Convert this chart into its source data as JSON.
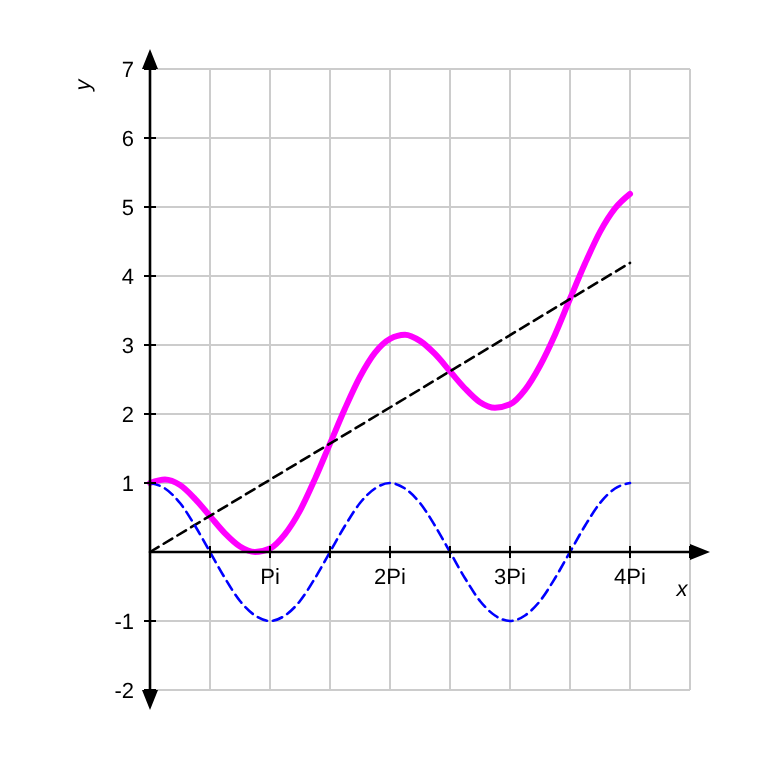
{
  "chart_data": {
    "type": "line",
    "xlabel": "x",
    "ylabel": "y",
    "xlim": [
      0,
      4.5
    ],
    "ylim": [
      -2,
      7
    ],
    "xticks": [
      {
        "value": 0.5,
        "label": null
      },
      {
        "value": 1,
        "label": "Pi"
      },
      {
        "value": 1.5,
        "label": null
      },
      {
        "value": 2,
        "label": "2Pi"
      },
      {
        "value": 2.5,
        "label": null
      },
      {
        "value": 3,
        "label": "3Pi"
      },
      {
        "value": 3.5,
        "label": null
      },
      {
        "value": 4,
        "label": "4Pi"
      },
      {
        "value": 4.5,
        "label": null
      }
    ],
    "yticks": [
      -2,
      -1,
      1,
      2,
      3,
      4,
      5,
      6,
      7
    ],
    "grid": true,
    "marker": "none",
    "series": [
      {
        "color": "#ff00ff",
        "line_style": "solid",
        "x": [
          0,
          0.125,
          0.25,
          0.375,
          0.5,
          0.625,
          0.75,
          0.875,
          1,
          1.125,
          1.25,
          1.375,
          1.5,
          1.625,
          1.75,
          1.875,
          2,
          2.125,
          2.25,
          2.375,
          2.5,
          2.625,
          2.75,
          2.875,
          3,
          3.125,
          3.25,
          3.375,
          3.5,
          3.625,
          3.75,
          3.875,
          4
        ],
        "values": [
          1,
          1.05,
          0.97,
          0.77,
          0.52,
          0.27,
          0.08,
          0,
          0.05,
          0.26,
          0.6,
          1.06,
          1.57,
          2.08,
          2.54,
          2.89,
          3.09,
          3.15,
          3.06,
          2.87,
          2.62,
          2.37,
          2.17,
          2.09,
          2.14,
          2.35,
          2.7,
          3.15,
          3.67,
          4.18,
          4.64,
          4.98,
          5.19
        ]
      },
      {
        "color": "#000000",
        "line_style": "dashed",
        "x": [
          0,
          4
        ],
        "values": [
          0,
          4.19
        ]
      },
      {
        "color": "#0000ff",
        "line_style": "dashed",
        "x": [
          0,
          0.125,
          0.25,
          0.375,
          0.5,
          0.625,
          0.75,
          0.875,
          1,
          1.125,
          1.25,
          1.375,
          1.5,
          1.625,
          1.75,
          1.875,
          2,
          2.125,
          2.25,
          2.375,
          2.5,
          2.625,
          2.75,
          2.875,
          3,
          3.125,
          3.25,
          3.375,
          3.5,
          3.625,
          3.75,
          3.875,
          4
        ],
        "values": [
          1,
          0.92,
          0.71,
          0.38,
          0,
          -0.38,
          -0.71,
          -0.92,
          -1,
          -0.92,
          -0.71,
          -0.38,
          0,
          0.38,
          0.71,
          0.92,
          1,
          0.92,
          0.71,
          0.38,
          0,
          -0.38,
          -0.71,
          -0.92,
          -1,
          -0.92,
          -0.71,
          -0.38,
          0,
          0.38,
          0.71,
          0.92,
          1
        ]
      }
    ]
  }
}
